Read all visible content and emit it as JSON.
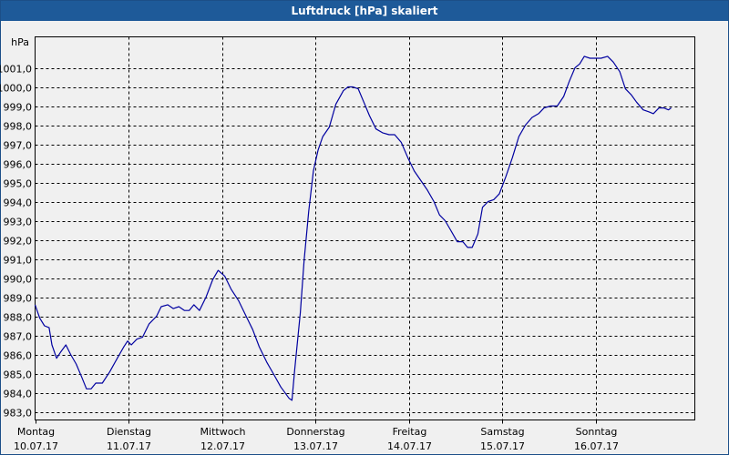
{
  "window": {
    "title": "Luftdruck [hPa] skaliert"
  },
  "colors": {
    "title_bar": "#1e5a99",
    "line": "#0000a0",
    "grid": "#000000",
    "background": "#f0f0f0"
  },
  "chart_data": {
    "type": "line",
    "title": "Luftdruck [hPa] skaliert",
    "ylabel": "hPa",
    "xlabel": "",
    "ylim": [
      983.0,
      1002.0
    ],
    "yticks": [
      983.0,
      984.0,
      985.0,
      986.0,
      987.0,
      988.0,
      989.0,
      990.0,
      991.0,
      992.0,
      993.0,
      994.0,
      995.0,
      996.0,
      997.0,
      998.0,
      999.0,
      1000.0,
      1001.0
    ],
    "ytick_labels": [
      "983,0",
      "984,0",
      "985,0",
      "986,0",
      "987,0",
      "988,0",
      "989,0",
      "990,0",
      "991,0",
      "992,0",
      "993,0",
      "994,0",
      "995,0",
      "996,0",
      "997,0",
      "998,0",
      "999,0",
      "1000,0",
      "1001,0"
    ],
    "xlim_days": [
      0,
      7.1
    ],
    "xticks": [
      {
        "day": 0,
        "label1": "Montag",
        "label2": "10.07.17"
      },
      {
        "day": 1,
        "label1": "Dienstag",
        "label2": "11.07.17"
      },
      {
        "day": 2,
        "label1": "Mittwoch",
        "label2": "12.07.17"
      },
      {
        "day": 3,
        "label1": "Donnerstag",
        "label2": "13.07.17"
      },
      {
        "day": 4,
        "label1": "Freitag",
        "label2": "14.07.17"
      },
      {
        "day": 5,
        "label1": "Samstag",
        "label2": "15.07.17"
      },
      {
        "day": 6,
        "label1": "Sonntag",
        "label2": "16.07.17"
      }
    ],
    "grid": true,
    "series": [
      {
        "points": [
          [
            0.0,
            988.6
          ],
          [
            0.05,
            987.9
          ],
          [
            0.1,
            987.5
          ],
          [
            0.15,
            987.4
          ],
          [
            0.18,
            986.5
          ],
          [
            0.23,
            985.8
          ],
          [
            0.27,
            986.1
          ],
          [
            0.33,
            986.5
          ],
          [
            0.38,
            986.0
          ],
          [
            0.44,
            985.5
          ],
          [
            0.5,
            984.8
          ],
          [
            0.55,
            984.2
          ],
          [
            0.6,
            984.2
          ],
          [
            0.65,
            984.5
          ],
          [
            0.72,
            984.5
          ],
          [
            0.8,
            985.1
          ],
          [
            0.88,
            985.8
          ],
          [
            0.95,
            986.4
          ],
          [
            0.99,
            986.7
          ],
          [
            1.03,
            986.5
          ],
          [
            1.09,
            986.8
          ],
          [
            1.15,
            986.9
          ],
          [
            1.22,
            987.6
          ],
          [
            1.3,
            988.0
          ],
          [
            1.35,
            988.5
          ],
          [
            1.42,
            988.6
          ],
          [
            1.48,
            988.4
          ],
          [
            1.54,
            988.5
          ],
          [
            1.6,
            988.3
          ],
          [
            1.65,
            988.3
          ],
          [
            1.7,
            988.6
          ],
          [
            1.76,
            988.3
          ],
          [
            1.83,
            989.0
          ],
          [
            1.9,
            989.9
          ],
          [
            1.96,
            990.4
          ],
          [
            2.03,
            990.1
          ],
          [
            2.1,
            989.4
          ],
          [
            2.18,
            988.8
          ],
          [
            2.26,
            988.0
          ],
          [
            2.33,
            987.3
          ],
          [
            2.4,
            986.4
          ],
          [
            2.48,
            985.6
          ],
          [
            2.55,
            985.0
          ],
          [
            2.63,
            984.3
          ],
          [
            2.72,
            983.7
          ],
          [
            2.75,
            983.6
          ],
          [
            2.78,
            985.2
          ],
          [
            2.84,
            988.2
          ],
          [
            2.88,
            990.9
          ],
          [
            2.93,
            993.5
          ],
          [
            2.98,
            995.6
          ],
          [
            3.03,
            996.7
          ],
          [
            3.08,
            997.4
          ],
          [
            3.15,
            997.9
          ],
          [
            3.22,
            999.1
          ],
          [
            3.3,
            999.8
          ],
          [
            3.35,
            1000.0
          ],
          [
            3.4,
            1000.0
          ],
          [
            3.46,
            999.9
          ],
          [
            3.52,
            999.2
          ],
          [
            3.58,
            998.5
          ],
          [
            3.65,
            997.8
          ],
          [
            3.72,
            997.6
          ],
          [
            3.79,
            997.5
          ],
          [
            3.85,
            997.5
          ],
          [
            3.92,
            997.1
          ],
          [
            3.99,
            996.3
          ],
          [
            4.06,
            995.6
          ],
          [
            4.13,
            995.1
          ],
          [
            4.2,
            994.6
          ],
          [
            4.27,
            994.0
          ],
          [
            4.33,
            993.3
          ],
          [
            4.39,
            993.0
          ],
          [
            4.45,
            992.5
          ],
          [
            4.52,
            991.9
          ],
          [
            4.58,
            991.9
          ],
          [
            4.63,
            991.6
          ],
          [
            4.68,
            991.6
          ],
          [
            4.74,
            992.3
          ],
          [
            4.79,
            993.7
          ],
          [
            4.85,
            994.0
          ],
          [
            4.91,
            994.1
          ],
          [
            4.97,
            994.4
          ],
          [
            5.04,
            995.3
          ],
          [
            5.11,
            996.3
          ],
          [
            5.18,
            997.4
          ],
          [
            5.25,
            998.0
          ],
          [
            5.32,
            998.4
          ],
          [
            5.39,
            998.6
          ],
          [
            5.45,
            998.9
          ],
          [
            5.52,
            999.0
          ],
          [
            5.59,
            999.0
          ],
          [
            5.66,
            999.5
          ],
          [
            5.72,
            1000.3
          ],
          [
            5.78,
            1001.0
          ],
          [
            5.83,
            1001.2
          ],
          [
            5.88,
            1001.6
          ],
          [
            5.94,
            1001.5
          ],
          [
            6.0,
            1001.5
          ],
          [
            6.06,
            1001.5
          ],
          [
            6.13,
            1001.6
          ],
          [
            6.19,
            1001.3
          ],
          [
            6.26,
            1000.8
          ],
          [
            6.32,
            999.9
          ],
          [
            6.38,
            999.6
          ],
          [
            6.44,
            999.2
          ],
          [
            6.51,
            998.8
          ],
          [
            6.57,
            998.7
          ],
          [
            6.62,
            998.6
          ],
          [
            6.68,
            998.9
          ],
          [
            6.73,
            998.9
          ],
          [
            6.78,
            998.8
          ],
          [
            6.81,
            998.9
          ]
        ]
      }
    ]
  }
}
